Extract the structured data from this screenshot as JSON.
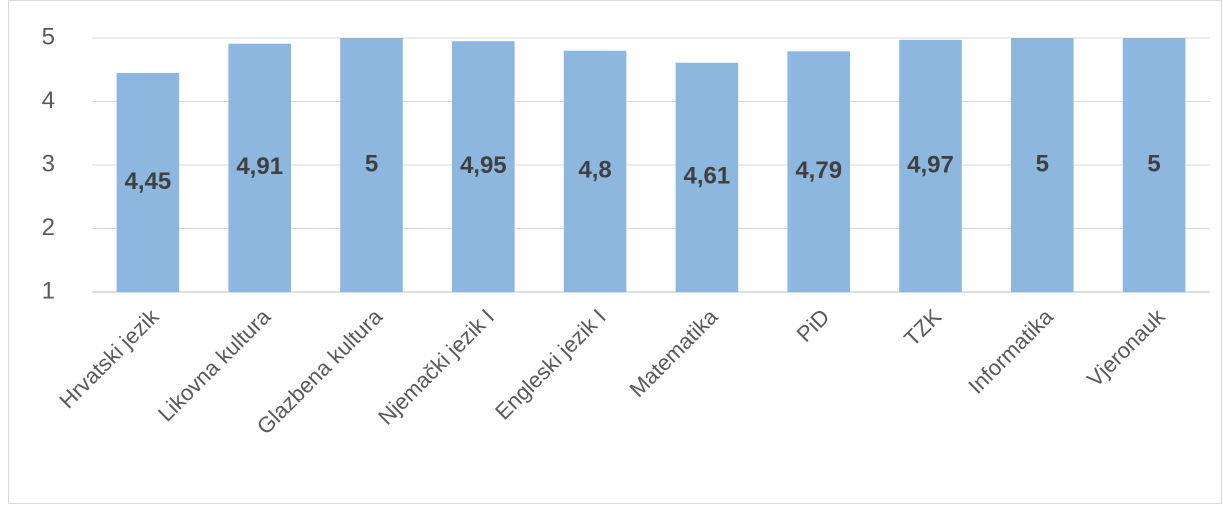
{
  "chart_data": {
    "type": "bar",
    "categories": [
      "Hrvatski jezik",
      "Likovna kultura",
      "Glazbena kultura",
      "Njemački jezik I",
      "Engleski jezik I",
      "Matematika",
      "PiD",
      "TZK",
      "Informatika",
      "Vjeronauk"
    ],
    "values": [
      4.45,
      4.91,
      5,
      4.95,
      4.8,
      4.61,
      4.79,
      4.97,
      5,
      5
    ],
    "value_labels": [
      "4,45",
      "4,91",
      "5",
      "4,95",
      "4,8",
      "4,61",
      "4,79",
      "4,97",
      "5",
      "5"
    ],
    "color": "#8eb7e0",
    "ylim": [
      1,
      5
    ],
    "yticks": [
      1,
      2,
      3,
      4,
      5
    ],
    "grid": true
  }
}
